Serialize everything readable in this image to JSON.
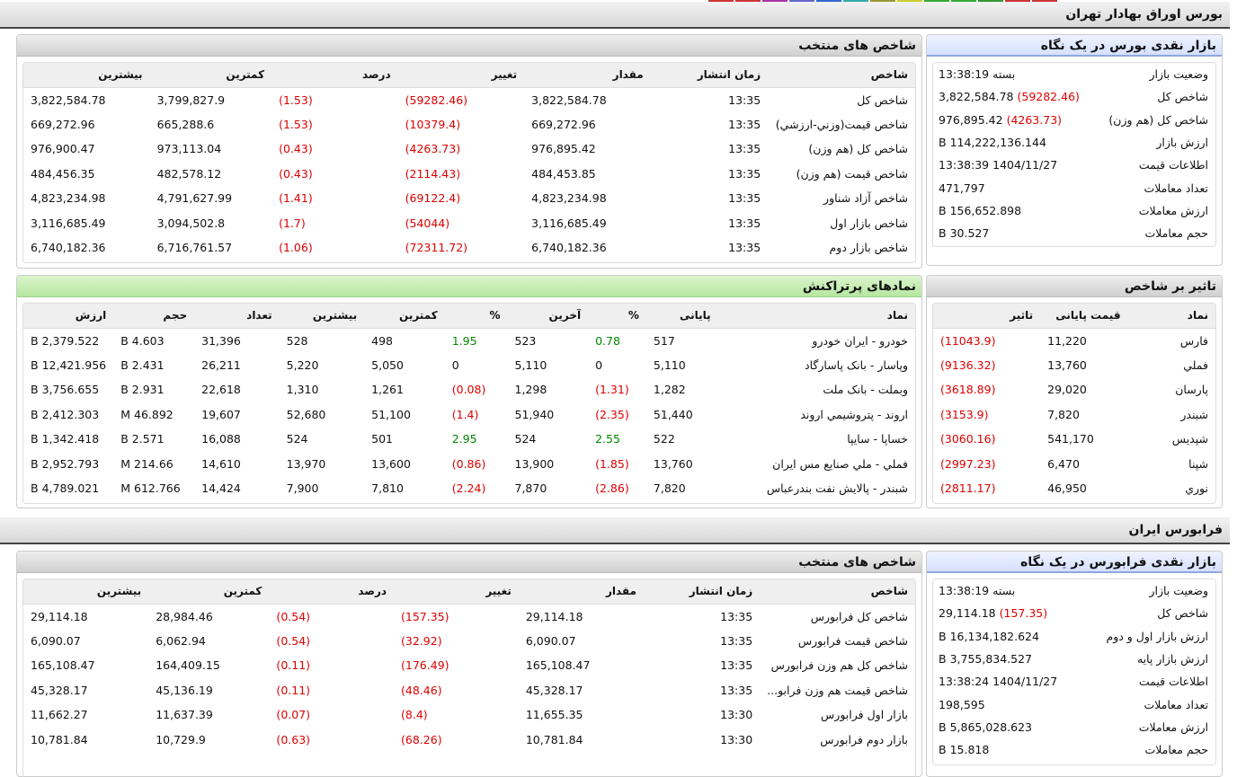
{
  "tse": {
    "title": "بورس اوراق بهادار تهران",
    "overview": {
      "title": "بازار نقدی بورس در یک نگاه",
      "rows": [
        {
          "k": "وضعیت بازار",
          "v": "بسته 13:38:19",
          "c": ""
        },
        {
          "k": "شاخص کل",
          "v": "3,822,584.78",
          "c": "(59282.46)"
        },
        {
          "k": "شاخص کل (هم وزن)",
          "v": "976,895.42",
          "c": "(4263.73)"
        },
        {
          "k": "ارزش بازار",
          "v": "114,222,136.144 B",
          "c": ""
        },
        {
          "k": "اطلاعات قیمت",
          "v": "1404/11/27 13:38:39",
          "c": ""
        },
        {
          "k": "تعداد معاملات",
          "v": "471,797",
          "c": ""
        },
        {
          "k": "ارزش معاملات",
          "v": "156,652.898 B",
          "c": ""
        },
        {
          "k": "حجم معاملات",
          "v": "30.527 B",
          "c": ""
        }
      ]
    },
    "indices": {
      "title": "شاخص های منتخب",
      "headers": [
        "شاخص",
        "زمان انتشار",
        "مقدار",
        "تغییر",
        "درصد",
        "کمترین",
        "بیشترین"
      ],
      "rows": [
        [
          "شاخص کل",
          "13:35",
          "3,822,584.78",
          "(59282.46)",
          "(1.53)",
          "3,799,827.9",
          "3,822,584.78"
        ],
        [
          "شاخص قيمت(وزني-ارزشي)",
          "13:35",
          "669,272.96",
          "(10379.4)",
          "(1.53)",
          "665,288.6",
          "669,272.96"
        ],
        [
          "شاخص کل (هم وزن)",
          "13:35",
          "976,895.42",
          "(4263.73)",
          "(0.43)",
          "973,113.04",
          "976,900.47"
        ],
        [
          "شاخص قیمت (هم وزن)",
          "13:35",
          "484,453.85",
          "(2114.43)",
          "(0.43)",
          "482,578.12",
          "484,456.35"
        ],
        [
          "شاخص آزاد شناور",
          "13:35",
          "4,823,234.98",
          "(69122.4)",
          "(1.41)",
          "4,791,627.99",
          "4,823,234.98"
        ],
        [
          "شاخص بازار اول",
          "13:35",
          "3,116,685.49",
          "(54044)",
          "(1.7)",
          "3,094,502.8",
          "3,116,685.49"
        ],
        [
          "شاخص بازار دوم",
          "13:35",
          "6,740,182.36",
          "(72311.72)",
          "(1.06)",
          "6,716,761.57",
          "6,740,182.36"
        ]
      ]
    },
    "impact": {
      "title": "تاثیر بر شاخص",
      "headers": [
        "نماد",
        "قیمت پایانی",
        "تاثیر"
      ],
      "rows": [
        [
          "فارس",
          "11,220",
          "(11043.9)"
        ],
        [
          "فملي",
          "13,760",
          "(9136.32)"
        ],
        [
          "پارسان",
          "29,020",
          "(3618.89)"
        ],
        [
          "شبندر",
          "7,820",
          "(3153.9)"
        ],
        [
          "شپديس",
          "541,170",
          "(3060.16)"
        ],
        [
          "شپنا",
          "6,470",
          "(2997.23)"
        ],
        [
          "نوري",
          "46,950",
          "(2811.17)"
        ]
      ]
    },
    "active": {
      "title": "نمادهای پرتراکنش",
      "headers": [
        "نماد",
        "پایانی",
        "%",
        "آخرین",
        "%",
        "کمترین",
        "بیشترین",
        "تعداد",
        "حجم",
        "ارزش"
      ],
      "rows": [
        [
          "خودرو - ايران خودرو",
          "517",
          "0.78",
          "523",
          "1.95",
          "498",
          "528",
          "31,396",
          "4.603 B",
          "2,379.522 B"
        ],
        [
          "وپاسار - بانک پاسارگاد",
          "5,110",
          "0",
          "5,110",
          "0",
          "5,050",
          "5,220",
          "26,211",
          "2.431 B",
          "12,421.956 B"
        ],
        [
          "وبملت - بانک ملت",
          "1,282",
          "(1.31)",
          "1,298",
          "(0.08)",
          "1,261",
          "1,310",
          "22,618",
          "2.931 B",
          "3,756.655 B"
        ],
        [
          "اروند - پتروشيمي اروند",
          "51,440",
          "(2.35)",
          "51,940",
          "(1.4)",
          "51,100",
          "52,680",
          "19,607",
          "46.892 M",
          "2,412.303 B"
        ],
        [
          "خساپا - سايپا",
          "522",
          "2.55",
          "524",
          "2.95",
          "501",
          "524",
          "16,088",
          "2.571 B",
          "1,342.418 B"
        ],
        [
          "فملي - ملي صنايع مس ايران",
          "13,760",
          "(1.85)",
          "13,900",
          "(0.86)",
          "13,600",
          "13,970",
          "14,610",
          "214.66 M",
          "2,952.793 B"
        ],
        [
          "شبندر - پالايش نفت بندرعباس",
          "7,820",
          "(2.86)",
          "7,870",
          "(2.24)",
          "7,810",
          "7,900",
          "14,424",
          "612.766 M",
          "4,789.021 B"
        ]
      ]
    }
  },
  "ifb": {
    "title": "فرابورس ایران",
    "overview": {
      "title": "بازار نقدی فرابورس در یک نگاه",
      "rows": [
        {
          "k": "وضعیت بازار",
          "v": "بسته 13:38:19",
          "c": ""
        },
        {
          "k": "شاخص کل",
          "v": "29,114.18",
          "c": "(157.35)"
        },
        {
          "k": "ارزش بازار اول و دوم",
          "v": "16,134,182.624 B",
          "c": ""
        },
        {
          "k": "ارزش بازار پایه",
          "v": "3,755,834.527 B",
          "c": ""
        },
        {
          "k": "اطلاعات قیمت",
          "v": "1404/11/27 13:38:24",
          "c": ""
        },
        {
          "k": "تعداد معاملات",
          "v": "198,595",
          "c": ""
        },
        {
          "k": "ارزش معاملات",
          "v": "5,865,028.623 B",
          "c": ""
        },
        {
          "k": "حجم معاملات",
          "v": "15.818 B",
          "c": ""
        }
      ]
    },
    "indices": {
      "title": "شاخص های منتخب",
      "headers": [
        "شاخص",
        "زمان انتشار",
        "مقدار",
        "تغییر",
        "درصد",
        "کمترین",
        "بیشترین"
      ],
      "rows": [
        [
          "شاخص کل فرابورس",
          "13:35",
          "29,114.18",
          "(157.35)",
          "(0.54)",
          "28,984.46",
          "29,114.18"
        ],
        [
          "شاخص قیمت فرابورس",
          "13:35",
          "6,090.07",
          "(32.92)",
          "(0.54)",
          "6,062.94",
          "6,090.07"
        ],
        [
          "شاخص کل هم وزن فرابورس",
          "13:35",
          "165,108.47",
          "(176.49)",
          "(0.11)",
          "164,409.15",
          "165,108.47"
        ],
        [
          "شاخص قیمت هم وزن فرابو...",
          "13:35",
          "45,328.17",
          "(48.46)",
          "(0.11)",
          "45,136.19",
          "45,328.17"
        ],
        [
          "بازار اول فرابورس",
          "13:30",
          "11,655.35",
          "(8.4)",
          "(0.07)",
          "11,637.39",
          "11,662.27"
        ],
        [
          "بازار دوم فرابورس",
          "13:30",
          "10,781.84",
          "(68.26)",
          "(0.63)",
          "10,729.9",
          "10,781.84"
        ]
      ]
    }
  },
  "colors": {
    "negative": "#dd0000",
    "positive": "#008800"
  }
}
